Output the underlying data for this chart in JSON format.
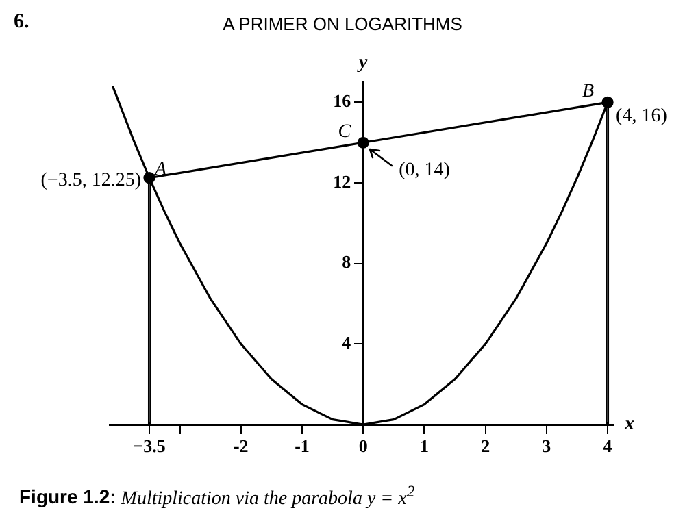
{
  "chart_data": {
    "type": "line",
    "title": "A PRIMER ON LOGARITHMS",
    "xlabel": "x",
    "ylabel": "y",
    "series": [
      {
        "color": "#000000",
        "marker": "none",
        "x": [
          -4.1,
          -3.75,
          -3.5,
          -3.25,
          -3,
          -2.5,
          -2,
          -1.5,
          -1,
          -0.5,
          0,
          0.5,
          1,
          1.5,
          2,
          2.5,
          3,
          3.25,
          3.5,
          3.75,
          4
        ],
        "values": [
          16.81,
          14.06,
          12.25,
          10.56,
          9,
          6.25,
          4,
          2.25,
          1,
          0.25,
          0,
          0.25,
          1,
          2.25,
          4,
          6.25,
          9,
          10.56,
          12.25,
          14.06,
          16
        ]
      },
      {
        "color": "#000000",
        "marker": "none",
        "x": [
          -3.5,
          0,
          4
        ],
        "values": [
          12.25,
          14,
          16
        ]
      },
      {
        "type": "scatter",
        "color": "#000000",
        "marker": "circle",
        "x": [
          -3.5,
          0,
          4
        ],
        "values": [
          12.25,
          14,
          16
        ]
      },
      {
        "type": "bar",
        "color": "#000000",
        "x": [
          -3.5,
          4
        ],
        "values": [
          12.25,
          16
        ]
      }
    ],
    "xlim": [
      -4.15,
      4.1
    ],
    "ylim": [
      0,
      17
    ],
    "xticks": [
      {
        "value": -3.5,
        "label": "−3.5"
      },
      {
        "value": -3,
        "label": null
      },
      -2,
      -1,
      0,
      1,
      2,
      3,
      4
    ],
    "yticks": [
      4,
      8,
      12,
      16
    ],
    "grid": false,
    "legend": false,
    "line_style": "solid",
    "annotations": [
      {
        "text": "A",
        "x": -3.5,
        "y": 12.25
      },
      {
        "text": "(−3.5, 12.25)",
        "x": -3.5,
        "y": 12.25
      },
      {
        "text": "B",
        "x": 4,
        "y": 16
      },
      {
        "text": "(4, 16)",
        "x": 4,
        "y": 16
      },
      {
        "text": "C",
        "x": 0,
        "y": 14
      },
      {
        "text": "(0, 14)",
        "x": 0,
        "y": 14
      },
      "6.",
      "Figure 1.2: Multiplication via the parabola y = x$^{2}$"
    ]
  }
}
